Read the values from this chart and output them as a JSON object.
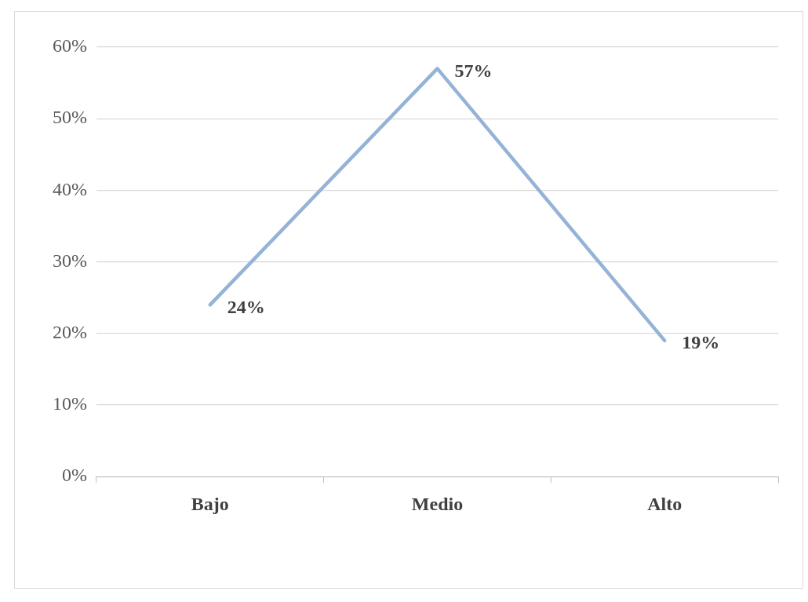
{
  "chart_data": {
    "type": "line",
    "categories": [
      "Bajo",
      "Medio",
      "Alto"
    ],
    "series": [
      {
        "color": "#95b3d7",
        "values": [
          24,
          57,
          19
        ],
        "value_labels": [
          "24%",
          "57%",
          "19%"
        ]
      }
    ],
    "ylim": [
      0,
      60
    ],
    "yticks": [
      {
        "value": 0,
        "label": "0%"
      },
      {
        "value": 10,
        "label": "10%"
      },
      {
        "value": 20,
        "label": "20%"
      },
      {
        "value": 30,
        "label": "30%"
      },
      {
        "value": 40,
        "label": "40%"
      },
      {
        "value": 50,
        "label": "50%"
      },
      {
        "value": 60,
        "label": "60%"
      }
    ],
    "grid": "y"
  }
}
